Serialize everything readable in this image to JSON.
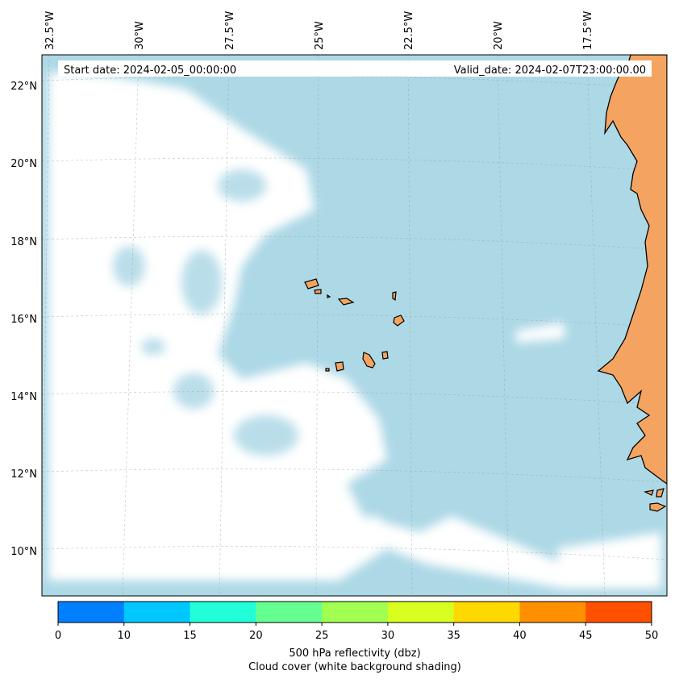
{
  "map": {
    "start_date": "Start date: 2024-02-05_00:00:00",
    "valid_date": "Valid_date: 2024-02-07T23:00:00.00",
    "lon_labels": [
      "32.5°W",
      "30°W",
      "27.5°W",
      "25°W",
      "22.5°W",
      "20°W",
      "17.5°W"
    ],
    "lat_labels": [
      "22°N",
      "20°N",
      "18°N",
      "16°N",
      "14°N",
      "12°N",
      "10°N"
    ],
    "colors": {
      "ocean": "#add8e6",
      "land": "#f4a460",
      "cloud": "#ffffff"
    }
  },
  "colorbar": {
    "ticks": [
      "0",
      "10",
      "15",
      "20",
      "25",
      "30",
      "35",
      "40",
      "45",
      "50"
    ],
    "colors": [
      "#0080ff",
      "#00c8ff",
      "#22ffd8",
      "#64ff90",
      "#a0ff50",
      "#d8ff20",
      "#ffd800",
      "#ff9000",
      "#ff5000"
    ],
    "label_line1": "500 hPa reflectivity (dbz)",
    "label_line2": "Cloud cover (white background shading)"
  }
}
